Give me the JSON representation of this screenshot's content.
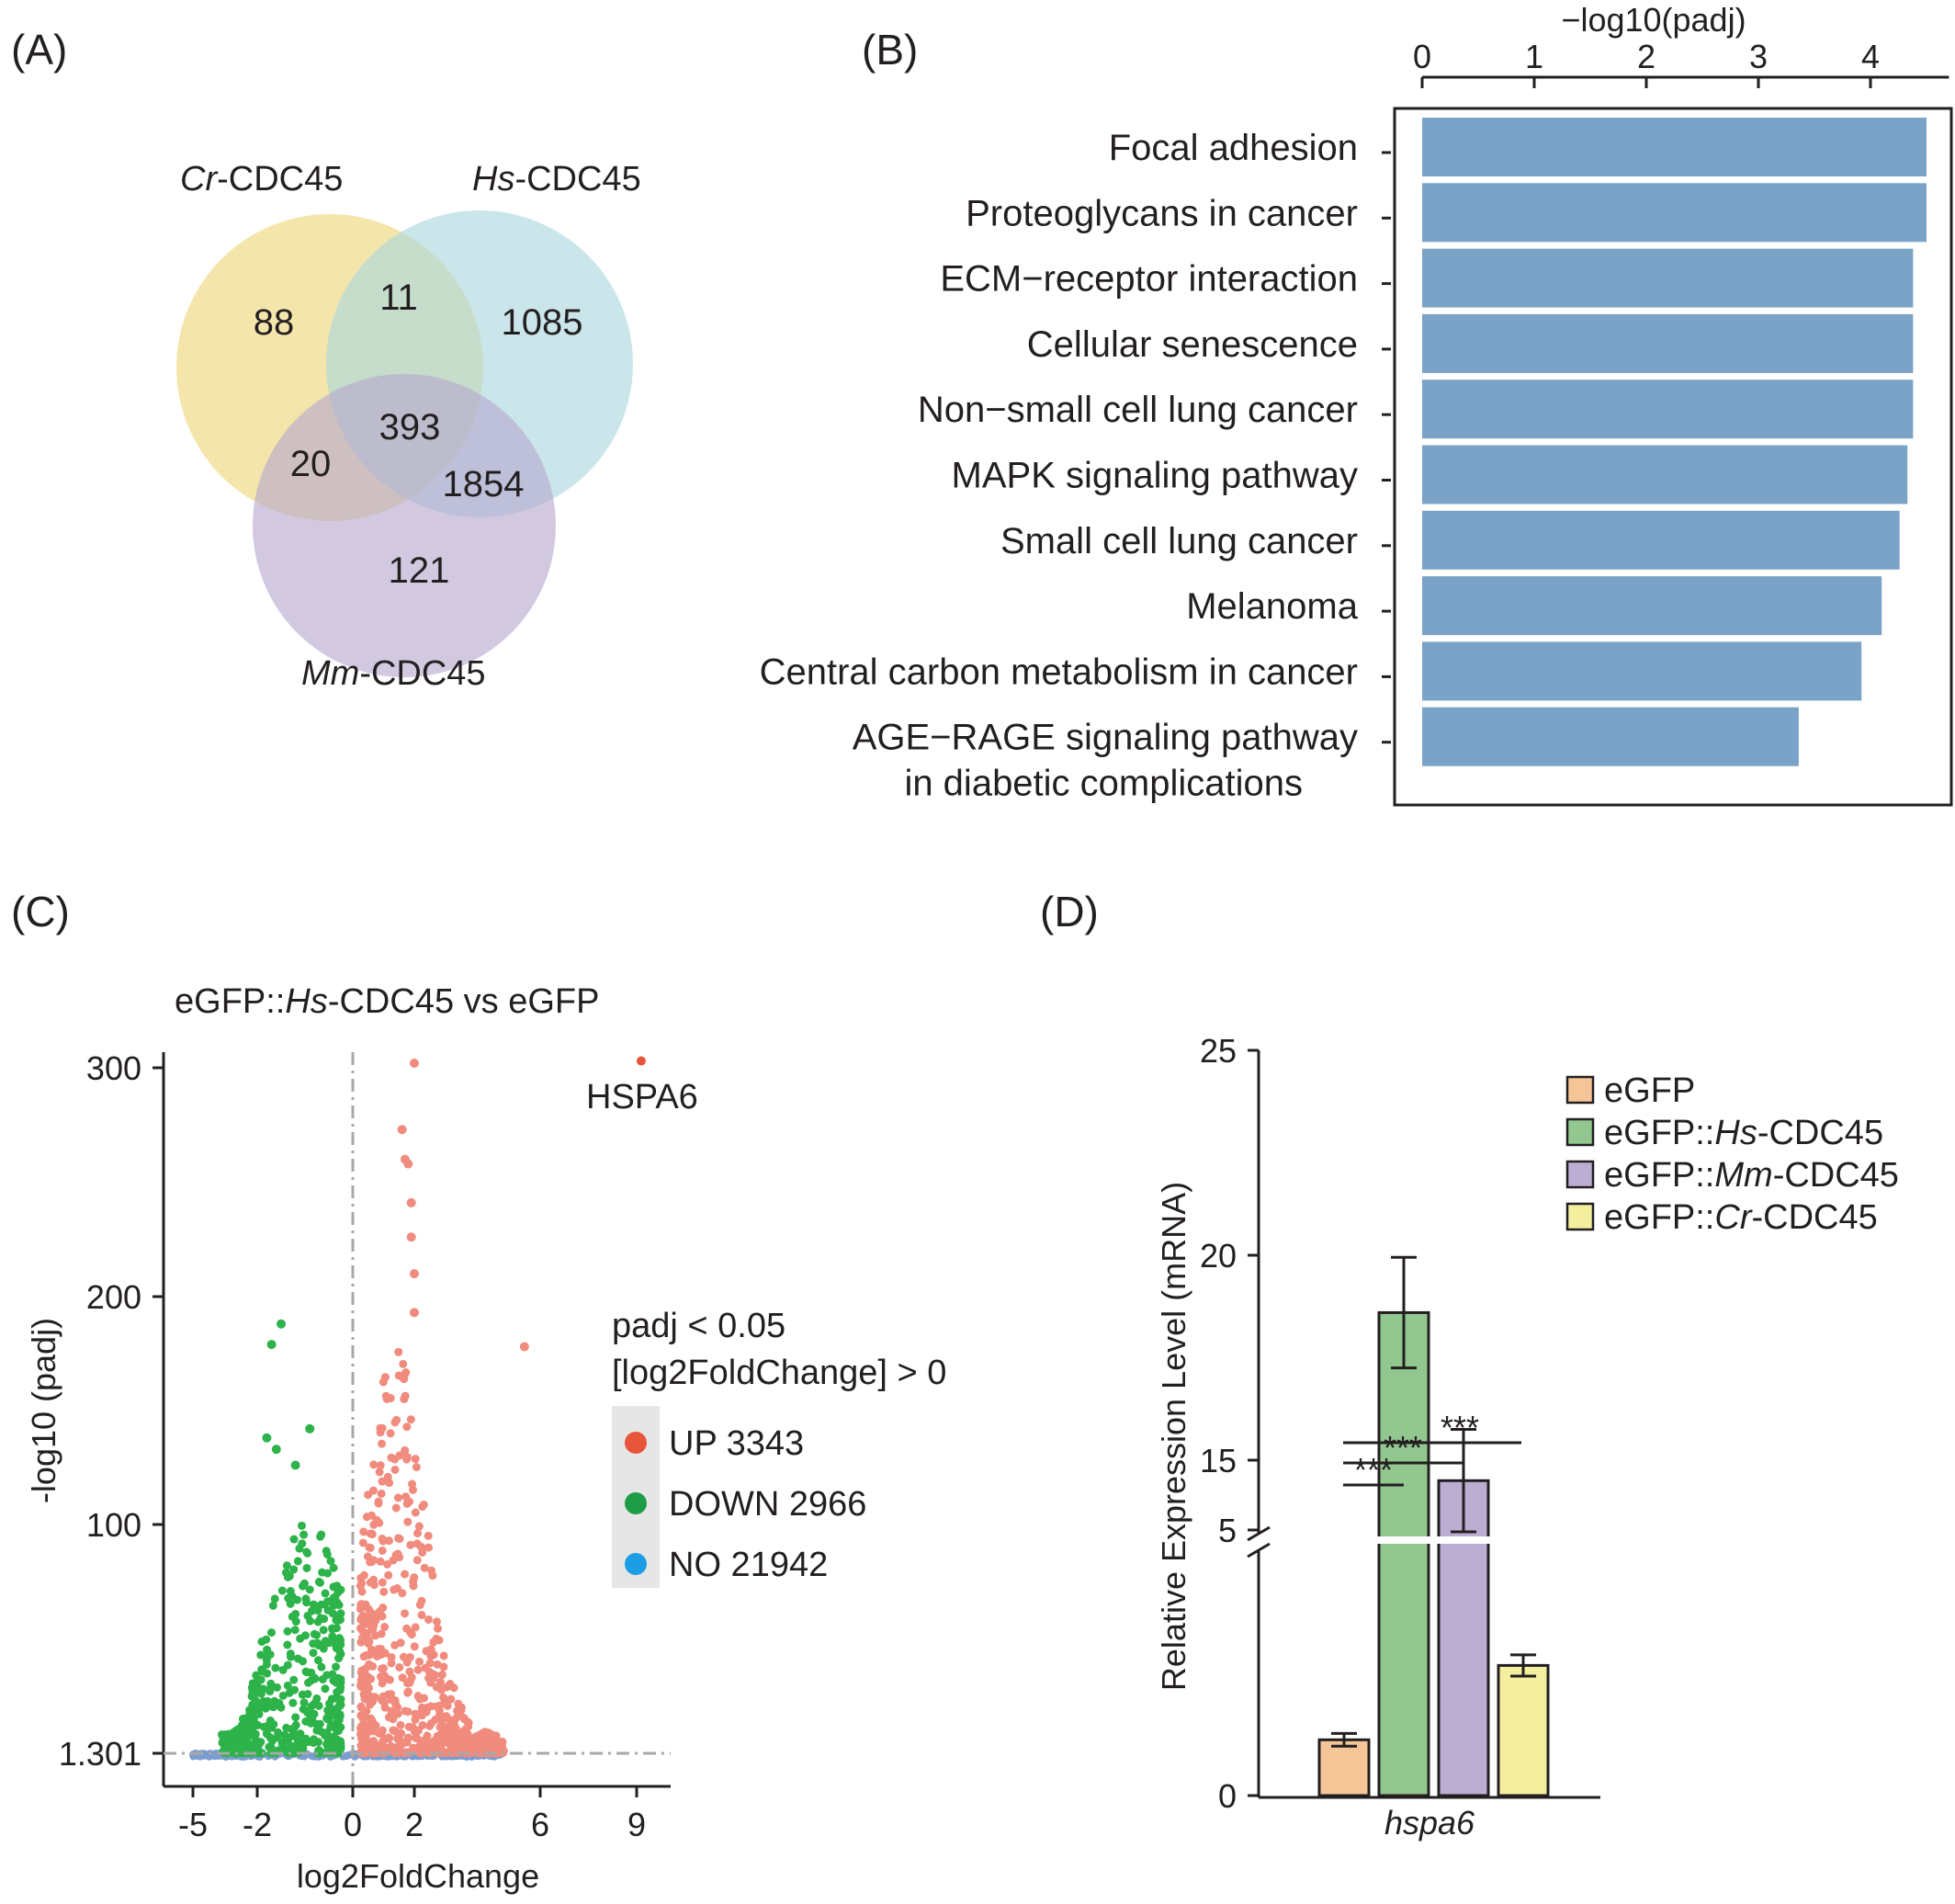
{
  "panels": {
    "a": {
      "label": "(A)"
    },
    "b": {
      "label": "(B)"
    },
    "c": {
      "label": "(C)"
    },
    "d": {
      "label": "(D)"
    }
  },
  "venn": {
    "sets": [
      {
        "prefix": "Cr",
        "suffix": "-CDC45",
        "color": "#f0dc8a"
      },
      {
        "prefix": "Hs",
        "suffix": "-CDC45",
        "color": "#a9d7df"
      },
      {
        "prefix": "Mm",
        "suffix": "-CDC45",
        "color": "#b7a8cf"
      }
    ],
    "counts": {
      "cr_only": "88",
      "cr_hs": "11",
      "hs_only": "1085",
      "all_three": "393",
      "cr_mm": "20",
      "hs_mm": "1854",
      "mm_only": "121"
    }
  },
  "chart_data": [
    {
      "type": "bar",
      "orientation": "horizontal",
      "xlabel": "−log10(padj)",
      "xlim": [
        0,
        4.7
      ],
      "xticks": [
        "0",
        "1",
        "2",
        "3",
        "4"
      ],
      "categories": [
        "Focal adhesion",
        "Proteoglycans in cancer",
        "ECM−receptor interaction",
        "Cellular senescence",
        "Non−small cell lung cancer",
        "MAPK signaling pathway",
        "Small cell lung cancer",
        "Melanoma",
        "Central carbon metabolism in cancer",
        "AGE−RAGE signaling pathway in diabetic complications"
      ],
      "category_lines": [
        [
          "Focal adhesion"
        ],
        [
          "Proteoglycans in cancer"
        ],
        [
          "ECM−receptor interaction"
        ],
        [
          "Cellular senescence"
        ],
        [
          "Non−small cell lung cancer"
        ],
        [
          "MAPK signaling pathway"
        ],
        [
          "Small cell lung cancer"
        ],
        [
          "Melanoma"
        ],
        [
          "Central carbon metabolism in cancer"
        ],
        [
          "AGE−RAGE signaling pathway",
          "in diabetic complications"
        ]
      ],
      "values": [
        4.5,
        4.5,
        4.38,
        4.38,
        4.38,
        4.33,
        4.26,
        4.1,
        3.92,
        3.36
      ],
      "color": "#7ba3c7"
    },
    {
      "type": "scatter",
      "title_parts": [
        "eGFP::",
        "Hs",
        "-CDC45 vs eGFP"
      ],
      "xlabel": "log2FoldChange",
      "ylabel": "-log10 (padj)",
      "xticks": [
        "-5",
        "-2",
        "0",
        "2",
        "6",
        "9"
      ],
      "yticks": [
        "1.301",
        "100",
        "200",
        "300"
      ],
      "legend_title": [
        "padj < 0.05",
        "[log2FoldChange] > 0"
      ],
      "legend_placement": "right",
      "series": [
        {
          "name": "UP",
          "count": "3343",
          "color": "#e8553a",
          "point_color": "#f08b7e"
        },
        {
          "name": "DOWN",
          "count": "2966",
          "color": "#1f9d46",
          "point_color": "#2db34a"
        },
        {
          "name": "NO",
          "count": "21942",
          "color": "#1d9de5",
          "point_color": "#7b9cd0"
        }
      ],
      "annotation": {
        "text": "HSPA6",
        "x": 9.2,
        "y": 303
      },
      "highlight_points": [
        {
          "x": 2.0,
          "y": 302,
          "series": "UP"
        },
        {
          "x": 1.6,
          "y": 273,
          "series": "UP"
        },
        {
          "x": 1.7,
          "y": 260,
          "series": "UP"
        },
        {
          "x": 1.8,
          "y": 258,
          "series": "UP"
        },
        {
          "x": 1.9,
          "y": 241,
          "series": "UP"
        },
        {
          "x": 1.9,
          "y": 226,
          "series": "UP"
        },
        {
          "x": 2.0,
          "y": 210,
          "series": "UP"
        },
        {
          "x": 2.0,
          "y": 193,
          "series": "UP"
        },
        {
          "x": 5.5,
          "y": 178,
          "series": "UP"
        },
        {
          "x": -1.5,
          "y": 188,
          "series": "DOWN"
        },
        {
          "x": -1.7,
          "y": 179,
          "series": "DOWN"
        },
        {
          "x": -0.9,
          "y": 142,
          "series": "DOWN"
        },
        {
          "x": -1.8,
          "y": 138,
          "series": "DOWN"
        },
        {
          "x": -1.6,
          "y": 133,
          "series": "DOWN"
        },
        {
          "x": -1.2,
          "y": 126,
          "series": "DOWN"
        }
      ]
    },
    {
      "type": "bar",
      "xlabel": "hspa6",
      "ylabel": "Relative Expression Level (mRNA)",
      "yticks": [
        "0",
        "5",
        "15",
        "20",
        "25"
      ],
      "axis_break": [
        6.5,
        13.5
      ],
      "categories": [
        "hspa6"
      ],
      "series": [
        {
          "name_parts": [
            "eGFP",
            "",
            ""
          ],
          "value": 1.05,
          "error": 0.12,
          "color": "#f5c597"
        },
        {
          "name_parts": [
            "eGFP::",
            "Hs",
            "-CDC45"
          ],
          "value": 18.6,
          "error": 1.35,
          "color": "#93c790"
        },
        {
          "name_parts": [
            "eGFP::",
            "Mm",
            "-CDC45"
          ],
          "value": 14.5,
          "error": 1.25,
          "color": "#bcaed3"
        },
        {
          "name_parts": [
            "eGFP::",
            "Cr",
            "-CDC45"
          ],
          "value": 2.45,
          "error": 0.2,
          "color": "#f4ef9e"
        }
      ],
      "significance": [
        "***",
        "***",
        "***"
      ]
    }
  ]
}
